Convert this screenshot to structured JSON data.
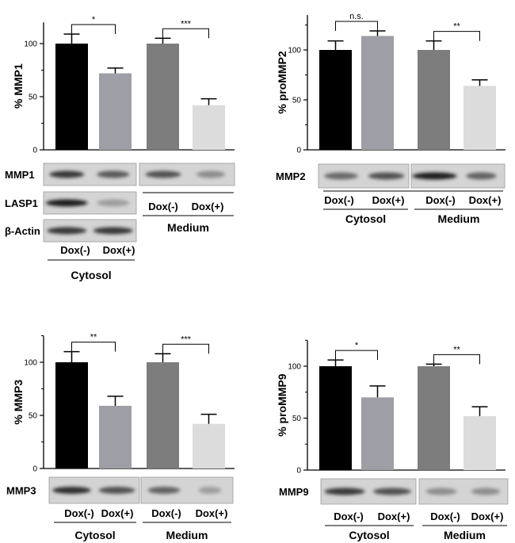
{
  "chart_data": [
    {
      "type": "bar",
      "panel": "MMP1",
      "ylabel": "% MMP1",
      "categories": [
        "Cytosol Dox(-)",
        "Cytosol Dox(+)",
        "Medium Dox(-)",
        "Medium Dox(+)"
      ],
      "values": [
        100,
        72,
        100,
        42
      ],
      "errors": [
        9,
        5,
        5,
        6
      ],
      "colors": [
        "#000000",
        "#9e9ea6",
        "#7d7d7d",
        "#dcdcdc"
      ],
      "ylim": [
        0,
        120
      ],
      "yticks": [
        "0",
        "50",
        "100"
      ],
      "significance": [
        {
          "from": 0,
          "to": 1,
          "label": "*"
        },
        {
          "from": 2,
          "to": 3,
          "label": "***"
        }
      ],
      "blots": [
        {
          "name": "MMP1",
          "split": true
        },
        {
          "name": "LASP1",
          "split": false
        },
        {
          "name": "β-Actin",
          "split": false
        }
      ],
      "lane_labels": [
        "Dox(-)",
        "Dox(+)",
        "Dox(-)",
        "Dox(+)"
      ],
      "groups": [
        "Cytosol",
        "Medium"
      ]
    },
    {
      "type": "bar",
      "panel": "MMP2",
      "ylabel": "% proMMP2",
      "categories": [
        "Cytosol Dox(-)",
        "Cytosol Dox(+)",
        "Medium Dox(-)",
        "Medium Dox(+)"
      ],
      "values": [
        100,
        114,
        100,
        64
      ],
      "errors": [
        9,
        5,
        9,
        6
      ],
      "colors": [
        "#000000",
        "#9e9ea6",
        "#7d7d7d",
        "#dcdcdc"
      ],
      "ylim": [
        0,
        135
      ],
      "yticks": [
        "0",
        "50",
        "100"
      ],
      "significance": [
        {
          "from": 0,
          "to": 1,
          "label": "n.s."
        },
        {
          "from": 2,
          "to": 3,
          "label": "**"
        }
      ],
      "blots": [
        {
          "name": "MMP2",
          "split": true
        }
      ],
      "lane_labels": [
        "Dox(-)",
        "Dox(+)",
        "Dox(-)",
        "Dox(+)"
      ],
      "groups": [
        "Cytosol",
        "Medium"
      ]
    },
    {
      "type": "bar",
      "panel": "MMP3",
      "ylabel": "% MMP3",
      "categories": [
        "Cytosol Dox(-)",
        "Cytosol Dox(+)",
        "Medium Dox(-)",
        "Medium Dox(+)"
      ],
      "values": [
        100,
        59,
        100,
        42
      ],
      "errors": [
        10,
        9,
        8,
        9
      ],
      "colors": [
        "#000000",
        "#9e9ea6",
        "#7d7d7d",
        "#dcdcdc"
      ],
      "ylim": [
        0,
        125
      ],
      "yticks": [
        "0",
        "50",
        "100"
      ],
      "significance": [
        {
          "from": 0,
          "to": 1,
          "label": "**"
        },
        {
          "from": 2,
          "to": 3,
          "label": "***"
        }
      ],
      "blots": [
        {
          "name": "MMP3",
          "split": true
        }
      ],
      "lane_labels": [
        "Dox(-)",
        "Dox(+)",
        "Dox(-)",
        "Dox(+)"
      ],
      "groups": [
        "Cytosol",
        "Medium"
      ]
    },
    {
      "type": "bar",
      "panel": "MMP9",
      "ylabel": "% proMMP9",
      "categories": [
        "Cytosol Dox(-)",
        "Cytosol Dox(+)",
        "Medium Dox(-)",
        "Medium Dox(+)"
      ],
      "values": [
        100,
        70,
        100,
        52
      ],
      "errors": [
        6,
        11,
        2,
        9
      ],
      "colors": [
        "#000000",
        "#9e9ea6",
        "#7d7d7d",
        "#dcdcdc"
      ],
      "ylim": [
        0,
        125
      ],
      "yticks": [
        "0",
        "50",
        "100"
      ],
      "significance": [
        {
          "from": 0,
          "to": 1,
          "label": "*"
        },
        {
          "from": 2,
          "to": 3,
          "label": "**"
        }
      ],
      "blots": [
        {
          "name": "MMP9",
          "split": true
        }
      ],
      "lane_labels": [
        "Dox(-)",
        "Dox(+)",
        "Dox(-)",
        "Dox(+)"
      ],
      "groups": [
        "Cytosol",
        "Medium"
      ]
    }
  ]
}
